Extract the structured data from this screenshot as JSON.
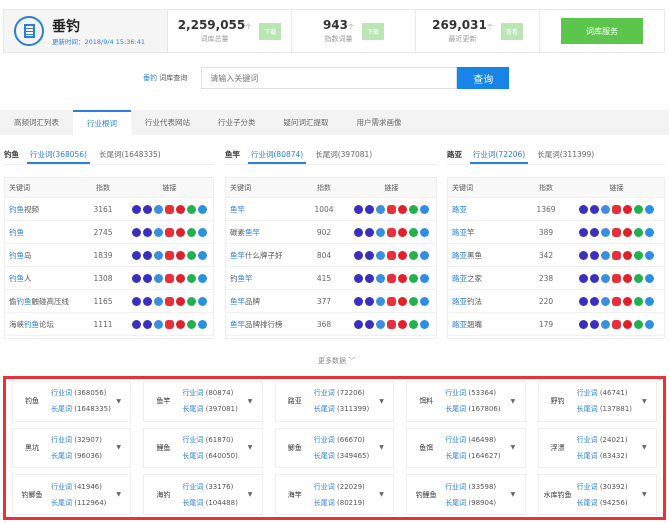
{
  "header": {
    "title": "垂钓",
    "update_time": "更新时间：2018/9/4 15:36:41",
    "stats": [
      {
        "value": "2,259,055",
        "unit": "个",
        "label": "词库总量",
        "tag": "下载"
      },
      {
        "value": "943",
        "unit": "个",
        "label": "指数词量",
        "tag": "下载"
      },
      {
        "value": "269,031",
        "unit": "个",
        "label": "最近更新",
        "tag": "查看"
      }
    ],
    "service_button": "词库服务"
  },
  "search": {
    "keyword": "垂钓",
    "label": "词库查询",
    "placeholder": "请输入关键词",
    "button": "查询"
  },
  "tabs": [
    {
      "label": "高频词汇列表"
    },
    {
      "label": "行业根词",
      "active": true
    },
    {
      "label": "行业代表网站"
    },
    {
      "label": "行业子分类"
    },
    {
      "label": "疑问词汇提取"
    },
    {
      "label": "用户需求画像"
    }
  ],
  "table_headers": {
    "keyword": "关键词",
    "index": "指数",
    "links": "链接"
  },
  "link_icons": [
    {
      "name": "baidu-icon",
      "color": "#3a2fbf"
    },
    {
      "name": "baidu-zhidao-icon",
      "color": "#3a2fbf"
    },
    {
      "name": "baidu-mobile-icon",
      "color": "#3b8fe0"
    },
    {
      "name": "360-icon",
      "color": "#e8303a"
    },
    {
      "name": "weibo-icon",
      "color": "#e0202a"
    },
    {
      "name": "wechat-icon",
      "color": "#22b14c"
    },
    {
      "name": "zhihu-icon",
      "color": "#2d8fe0"
    }
  ],
  "columns": [
    {
      "root": "钓鱼",
      "tab1": "行业词(368056)",
      "tab2": "长尾词(1648335)",
      "rows": [
        {
          "seg": [
            [
              "钓鱼",
              1
            ],
            [
              "视频",
              0
            ]
          ],
          "index": "3161"
        },
        {
          "seg": [
            [
              "钓鱼",
              1
            ]
          ],
          "index": "2745"
        },
        {
          "seg": [
            [
              "钓鱼",
              1
            ],
            [
              "岛",
              0
            ]
          ],
          "index": "1839"
        },
        {
          "seg": [
            [
              "钓鱼",
              1
            ],
            [
              "人",
              0
            ]
          ],
          "index": "1308"
        },
        {
          "seg": [
            [
              "偷",
              0
            ],
            [
              "钓鱼",
              1
            ],
            [
              "触碰高压线",
              0
            ]
          ],
          "index": "1165"
        },
        {
          "seg": [
            [
              "海峡",
              0
            ],
            [
              "钓鱼",
              1
            ],
            [
              "论坛",
              0
            ]
          ],
          "index": "1111"
        }
      ]
    },
    {
      "root": "鱼竿",
      "tab1": "行业词(80874)",
      "tab2": "长尾词(397081)",
      "rows": [
        {
          "seg": [
            [
              "鱼竿",
              1
            ]
          ],
          "index": "1004"
        },
        {
          "seg": [
            [
              "碳素",
              0
            ],
            [
              "鱼竿",
              1
            ]
          ],
          "index": "902"
        },
        {
          "seg": [
            [
              "鱼竿",
              1
            ],
            [
              "什么牌子好",
              0
            ]
          ],
          "index": "804"
        },
        {
          "seg": [
            [
              "钓",
              0
            ],
            [
              "鱼竿",
              1
            ]
          ],
          "index": "415"
        },
        {
          "seg": [
            [
              "鱼竿",
              1
            ],
            [
              "品牌",
              0
            ]
          ],
          "index": "377"
        },
        {
          "seg": [
            [
              "鱼竿",
              1
            ],
            [
              "品牌排行榜",
              0
            ]
          ],
          "index": "368"
        }
      ]
    },
    {
      "root": "路亚",
      "tab1": "行业词(72206)",
      "tab2": "长尾词(311399)",
      "rows": [
        {
          "seg": [
            [
              "路亚",
              1
            ]
          ],
          "index": "1369"
        },
        {
          "seg": [
            [
              "路亚",
              1
            ],
            [
              "竿",
              0
            ]
          ],
          "index": "389"
        },
        {
          "seg": [
            [
              "路亚",
              1
            ],
            [
              "黑鱼",
              0
            ]
          ],
          "index": "342"
        },
        {
          "seg": [
            [
              "路亚",
              1
            ],
            [
              "之家",
              0
            ]
          ],
          "index": "238"
        },
        {
          "seg": [
            [
              "路亚",
              1
            ],
            [
              "钓法",
              0
            ]
          ],
          "index": "220"
        },
        {
          "seg": [
            [
              "路亚",
              1
            ],
            [
              "翘嘴",
              0
            ]
          ],
          "index": "179"
        }
      ]
    }
  ],
  "more": "更多数据 ﹀",
  "categories": [
    {
      "name": "钓鱼",
      "a": "(368056)",
      "b": "(1648335)"
    },
    {
      "name": "鱼竿",
      "a": "(80874)",
      "b": "(397081)"
    },
    {
      "name": "路亚",
      "a": "(72206)",
      "b": "(311399)"
    },
    {
      "name": "饵料",
      "a": "(53364)",
      "b": "(167806)"
    },
    {
      "name": "野钓",
      "a": "(46741)",
      "b": "(137881)"
    },
    {
      "name": "黑坑",
      "a": "(32907)",
      "b": "(96036)"
    },
    {
      "name": "鲤鱼",
      "a": "(61870)",
      "b": "(640050)"
    },
    {
      "name": "鲫鱼",
      "a": "(66670)",
      "b": "(349465)"
    },
    {
      "name": "鱼饵",
      "a": "(46498)",
      "b": "(164627)"
    },
    {
      "name": "浮漂",
      "a": "(24021)",
      "b": "(83432)"
    },
    {
      "name": "钓鲫鱼",
      "a": "(41946)",
      "b": "(112964)"
    },
    {
      "name": "海钓",
      "a": "(33176)",
      "b": "(104488)"
    },
    {
      "name": "海竿",
      "a": "(22029)",
      "b": "(80219)"
    },
    {
      "name": "钓鲤鱼",
      "a": "(33598)",
      "b": "(98904)"
    },
    {
      "name": "水库钓鱼",
      "a": "(30392)",
      "b": "(94256)"
    }
  ],
  "category_labels": {
    "industry": "行业词",
    "longtail": "长尾词"
  }
}
